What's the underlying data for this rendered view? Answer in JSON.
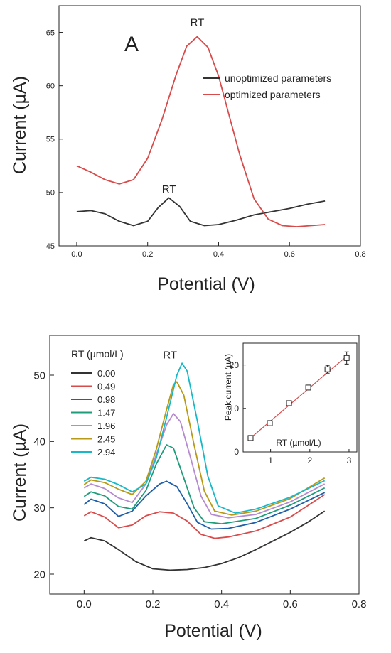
{
  "chart_data": [
    {
      "type": "line",
      "panel_label": "A",
      "xlabel": "Potential (V)",
      "ylabel": "Current (µA)",
      "xlim": [
        -0.05,
        0.8
      ],
      "ylim": [
        45,
        67.5
      ],
      "xticks": [
        "0.0",
        "0.2",
        "0.4",
        "0.6",
        "0.8"
      ],
      "yticks": [
        "45",
        "50",
        "55",
        "60",
        "65"
      ],
      "legend_position": "right",
      "annotations": [
        {
          "text": "RT",
          "x": 0.34,
          "y": 65.6
        },
        {
          "text": "RT",
          "x": 0.26,
          "y": 50.0
        }
      ],
      "series": [
        {
          "name": "unoptimized parameters",
          "color": "#333333",
          "points": [
            [
              0.0,
              48.2
            ],
            [
              0.04,
              48.3
            ],
            [
              0.08,
              48.0
            ],
            [
              0.12,
              47.3
            ],
            [
              0.16,
              46.9
            ],
            [
              0.2,
              47.3
            ],
            [
              0.23,
              48.6
            ],
            [
              0.26,
              49.5
            ],
            [
              0.29,
              48.7
            ],
            [
              0.32,
              47.3
            ],
            [
              0.36,
              46.9
            ],
            [
              0.4,
              47.0
            ],
            [
              0.45,
              47.4
            ],
            [
              0.5,
              47.9
            ],
            [
              0.55,
              48.2
            ],
            [
              0.6,
              48.5
            ],
            [
              0.65,
              48.9
            ],
            [
              0.7,
              49.2
            ]
          ]
        },
        {
          "name": "optimized parameters",
          "color": "#d94a4a",
          "points": [
            [
              0.0,
              52.5
            ],
            [
              0.04,
              51.9
            ],
            [
              0.08,
              51.2
            ],
            [
              0.12,
              50.8
            ],
            [
              0.16,
              51.2
            ],
            [
              0.2,
              53.2
            ],
            [
              0.24,
              56.8
            ],
            [
              0.28,
              61.0
            ],
            [
              0.31,
              63.7
            ],
            [
              0.34,
              64.6
            ],
            [
              0.37,
              63.6
            ],
            [
              0.4,
              60.9
            ],
            [
              0.43,
              57.2
            ],
            [
              0.46,
              53.5
            ],
            [
              0.5,
              49.4
            ],
            [
              0.54,
              47.5
            ],
            [
              0.58,
              46.9
            ],
            [
              0.62,
              46.8
            ],
            [
              0.66,
              46.9
            ],
            [
              0.7,
              47.0
            ]
          ]
        }
      ]
    },
    {
      "type": "line",
      "panel_label": "B",
      "xlabel": "Potential (V)",
      "ylabel": "Current (µA)",
      "xlim": [
        -0.1,
        0.8
      ],
      "ylim": [
        17,
        56
      ],
      "xticks": [
        "0.0",
        "0.2",
        "0.4",
        "0.6",
        "0.8"
      ],
      "yticks": [
        "20",
        "30",
        "40",
        "50"
      ],
      "legend_title": "RT (µmol/L)",
      "legend_position": "top-left",
      "annotations": [
        {
          "text": "RT",
          "x": 0.25,
          "y": 52.5
        }
      ],
      "series": [
        {
          "name": "0.00",
          "color": "#333333",
          "points": [
            [
              0.0,
              25.0
            ],
            [
              0.02,
              25.5
            ],
            [
              0.06,
              25.0
            ],
            [
              0.1,
              23.7
            ],
            [
              0.15,
              21.9
            ],
            [
              0.2,
              20.8
            ],
            [
              0.25,
              20.6
            ],
            [
              0.3,
              20.7
            ],
            [
              0.35,
              21.0
            ],
            [
              0.4,
              21.6
            ],
            [
              0.45,
              22.5
            ],
            [
              0.5,
              23.7
            ],
            [
              0.55,
              25.0
            ],
            [
              0.6,
              26.3
            ],
            [
              0.65,
              27.8
            ],
            [
              0.7,
              29.5
            ]
          ]
        },
        {
          "name": "0.49",
          "color": "#d94a4a",
          "points": [
            [
              0.0,
              28.8
            ],
            [
              0.02,
              29.4
            ],
            [
              0.06,
              28.6
            ],
            [
              0.1,
              27.0
            ],
            [
              0.14,
              27.4
            ],
            [
              0.18,
              28.8
            ],
            [
              0.22,
              29.4
            ],
            [
              0.26,
              29.2
            ],
            [
              0.3,
              28.0
            ],
            [
              0.34,
              26.0
            ],
            [
              0.38,
              25.4
            ],
            [
              0.42,
              25.6
            ],
            [
              0.5,
              26.5
            ],
            [
              0.6,
              28.6
            ],
            [
              0.7,
              32.0
            ]
          ]
        },
        {
          "name": "0.98",
          "color": "#1e5fa8",
          "points": [
            [
              0.0,
              30.5
            ],
            [
              0.02,
              31.3
            ],
            [
              0.06,
              30.6
            ],
            [
              0.1,
              28.7
            ],
            [
              0.14,
              29.5
            ],
            [
              0.18,
              31.8
            ],
            [
              0.22,
              33.6
            ],
            [
              0.24,
              34.0
            ],
            [
              0.27,
              33.2
            ],
            [
              0.3,
              30.6
            ],
            [
              0.33,
              27.8
            ],
            [
              0.37,
              26.8
            ],
            [
              0.42,
              26.9
            ],
            [
              0.5,
              27.8
            ],
            [
              0.6,
              29.8
            ],
            [
              0.7,
              32.3
            ]
          ]
        },
        {
          "name": "1.47",
          "color": "#1f9c7a",
          "points": [
            [
              0.0,
              31.7
            ],
            [
              0.02,
              32.4
            ],
            [
              0.06,
              31.8
            ],
            [
              0.1,
              30.2
            ],
            [
              0.14,
              29.8
            ],
            [
              0.18,
              32.6
            ],
            [
              0.21,
              36.6
            ],
            [
              0.24,
              39.5
            ],
            [
              0.26,
              39.0
            ],
            [
              0.29,
              34.5
            ],
            [
              0.32,
              30.0
            ],
            [
              0.35,
              27.9
            ],
            [
              0.4,
              27.6
            ],
            [
              0.5,
              28.4
            ],
            [
              0.6,
              30.4
            ],
            [
              0.7,
              33.0
            ]
          ]
        },
        {
          "name": "1.96",
          "color": "#b58ad0",
          "points": [
            [
              0.0,
              33.0
            ],
            [
              0.02,
              33.6
            ],
            [
              0.06,
              32.9
            ],
            [
              0.1,
              31.5
            ],
            [
              0.14,
              30.8
            ],
            [
              0.18,
              33.6
            ],
            [
              0.21,
              38.0
            ],
            [
              0.24,
              42.5
            ],
            [
              0.26,
              44.2
            ],
            [
              0.28,
              43.0
            ],
            [
              0.31,
              37.5
            ],
            [
              0.34,
              31.8
            ],
            [
              0.37,
              29.0
            ],
            [
              0.42,
              28.5
            ],
            [
              0.5,
              29.0
            ],
            [
              0.6,
              30.9
            ],
            [
              0.7,
              33.6
            ]
          ]
        },
        {
          "name": "2.45",
          "color": "#b89a16",
          "points": [
            [
              0.0,
              33.5
            ],
            [
              0.02,
              34.2
            ],
            [
              0.06,
              33.8
            ],
            [
              0.1,
              32.8
            ],
            [
              0.14,
              32.0
            ],
            [
              0.18,
              34.0
            ],
            [
              0.21,
              38.8
            ],
            [
              0.24,
              44.8
            ],
            [
              0.26,
              48.6
            ],
            [
              0.27,
              49.0
            ],
            [
              0.29,
              47.0
            ],
            [
              0.32,
              39.5
            ],
            [
              0.35,
              32.5
            ],
            [
              0.38,
              29.5
            ],
            [
              0.43,
              28.9
            ],
            [
              0.5,
              29.5
            ],
            [
              0.6,
              31.4
            ],
            [
              0.7,
              34.5
            ]
          ]
        },
        {
          "name": "2.94",
          "color": "#19b8c8",
          "points": [
            [
              0.0,
              34.0
            ],
            [
              0.02,
              34.6
            ],
            [
              0.06,
              34.3
            ],
            [
              0.1,
              33.5
            ],
            [
              0.14,
              32.4
            ],
            [
              0.18,
              33.6
            ],
            [
              0.21,
              37.5
            ],
            [
              0.24,
              43.6
            ],
            [
              0.27,
              50.0
            ],
            [
              0.285,
              51.8
            ],
            [
              0.3,
              50.6
            ],
            [
              0.33,
              43.0
            ],
            [
              0.36,
              34.8
            ],
            [
              0.39,
              30.3
            ],
            [
              0.44,
              29.2
            ],
            [
              0.5,
              29.8
            ],
            [
              0.6,
              31.6
            ],
            [
              0.7,
              34.1
            ]
          ]
        }
      ],
      "inset": {
        "type": "scatter",
        "xlabel": "RT (µmol/L)",
        "ylabel": "Peak current (µA)",
        "xlim": [
          0.3,
          3.2
        ],
        "ylim": [
          0,
          25
        ],
        "xticks": [
          "1",
          "2",
          "3"
        ],
        "yticks": [
          "0",
          "10",
          "20"
        ],
        "fit_line_color": "#d94a4a",
        "fit_line": [
          [
            0.49,
            3.2
          ],
          [
            2.94,
            22.0
          ]
        ],
        "points": [
          {
            "x": 0.49,
            "y": 3.2,
            "err": 0.5
          },
          {
            "x": 0.98,
            "y": 6.6,
            "err": 0.6
          },
          {
            "x": 1.47,
            "y": 11.2,
            "err": 0.5
          },
          {
            "x": 1.96,
            "y": 14.8,
            "err": 0.5
          },
          {
            "x": 2.45,
            "y": 19.0,
            "err": 0.9
          },
          {
            "x": 2.94,
            "y": 21.6,
            "err": 1.4
          }
        ]
      }
    }
  ]
}
